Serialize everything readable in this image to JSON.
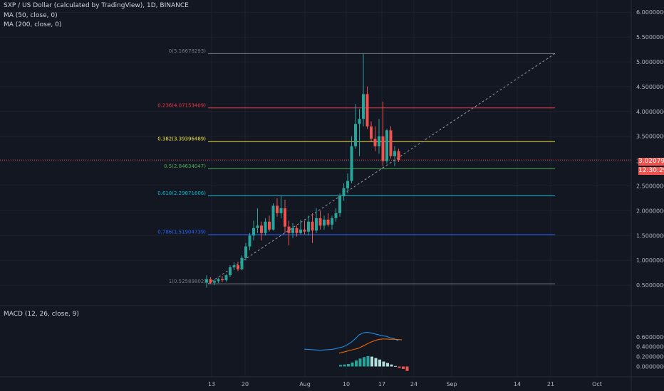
{
  "legend": {
    "title": "SXP / US Dollar (calculated by TradingView), 1D, BINANCE",
    "ma50": "MA (50, close, 0)",
    "ma200": "MA (200, close, 0)",
    "macd": "MACD (12, 26, close, 9)"
  },
  "price_label": {
    "current": "3.02079131",
    "countdown": "12:30:29",
    "color": "#ef5350"
  },
  "colors": {
    "background": "#131722",
    "up": "#26a69a",
    "down": "#ef5350",
    "macd_line": "#2196f3",
    "signal_line": "#ff6d00",
    "grid": "#1e222d"
  },
  "chart_data": [
    {
      "type": "candlestick",
      "title": "SXP / US Dollar (calculated by TradingView), 1D, BINANCE",
      "ylim": [
        0.0,
        6.3
      ],
      "y_ticks": [
        "0.50000000",
        "1.00000000",
        "1.50000000",
        "2.00000000",
        "2.50000000",
        "3.00000000",
        "3.50000000",
        "4.00000000",
        "4.50000000",
        "5.00000000",
        "5.50000000",
        "6.00000000"
      ],
      "x_ticks": [
        "13",
        "20",
        "Aug",
        "10",
        "17",
        "24",
        "Sep",
        "14",
        "21",
        "Oct"
      ],
      "current_price": 3.02079131,
      "fib_levels": [
        {
          "label": "0(5.16678293)",
          "value": 5.16678293,
          "color": "#787b86"
        },
        {
          "label": "0.236(4.07153409)",
          "value": 4.07153409,
          "color": "#f23645"
        },
        {
          "label": "0.382(3.39396489)",
          "value": 3.39396489,
          "color": "#f5e642"
        },
        {
          "label": "0.5(2.84634047)",
          "value": 2.84634047,
          "color": "#4caf50"
        },
        {
          "label": "0.618(2.29871606)",
          "value": 2.29871606,
          "color": "#00bcd4"
        },
        {
          "label": "0.786(1.51904739)",
          "value": 1.51904739,
          "color": "#2962ff"
        },
        {
          "label": "1(0.52589802)",
          "value": 0.52589802,
          "color": "#787b86"
        }
      ],
      "candles": [
        {
          "o": 0.55,
          "h": 0.7,
          "l": 0.45,
          "c": 0.62
        },
        {
          "o": 0.62,
          "h": 0.66,
          "l": 0.52,
          "c": 0.55
        },
        {
          "o": 0.55,
          "h": 0.62,
          "l": 0.5,
          "c": 0.58
        },
        {
          "o": 0.58,
          "h": 0.65,
          "l": 0.54,
          "c": 0.62
        },
        {
          "o": 0.62,
          "h": 0.68,
          "l": 0.56,
          "c": 0.6
        },
        {
          "o": 0.6,
          "h": 0.72,
          "l": 0.57,
          "c": 0.7
        },
        {
          "o": 0.7,
          "h": 0.9,
          "l": 0.66,
          "c": 0.86
        },
        {
          "o": 0.86,
          "h": 0.96,
          "l": 0.8,
          "c": 0.9
        },
        {
          "o": 0.9,
          "h": 0.97,
          "l": 0.78,
          "c": 0.82
        },
        {
          "o": 0.82,
          "h": 1.1,
          "l": 0.8,
          "c": 1.05
        },
        {
          "o": 1.05,
          "h": 1.35,
          "l": 1.0,
          "c": 1.28
        },
        {
          "o": 1.28,
          "h": 1.55,
          "l": 1.2,
          "c": 1.5
        },
        {
          "o": 1.5,
          "h": 1.8,
          "l": 1.4,
          "c": 1.65
        },
        {
          "o": 1.65,
          "h": 2.05,
          "l": 1.55,
          "c": 1.7
        },
        {
          "o": 1.7,
          "h": 1.78,
          "l": 1.4,
          "c": 1.55
        },
        {
          "o": 1.55,
          "h": 1.85,
          "l": 1.5,
          "c": 1.78
        },
        {
          "o": 1.78,
          "h": 1.9,
          "l": 1.58,
          "c": 1.62
        },
        {
          "o": 1.62,
          "h": 2.15,
          "l": 1.6,
          "c": 2.1
        },
        {
          "o": 2.1,
          "h": 2.25,
          "l": 1.88,
          "c": 1.95
        },
        {
          "o": 1.95,
          "h": 2.3,
          "l": 1.85,
          "c": 2.05
        },
        {
          "o": 2.05,
          "h": 2.22,
          "l": 1.55,
          "c": 1.68
        },
        {
          "o": 1.68,
          "h": 1.8,
          "l": 1.3,
          "c": 1.55
        },
        {
          "o": 1.55,
          "h": 1.75,
          "l": 1.45,
          "c": 1.65
        },
        {
          "o": 1.65,
          "h": 1.7,
          "l": 1.48,
          "c": 1.55
        },
        {
          "o": 1.55,
          "h": 1.82,
          "l": 1.52,
          "c": 1.62
        },
        {
          "o": 1.62,
          "h": 1.8,
          "l": 1.52,
          "c": 1.58
        },
        {
          "o": 1.58,
          "h": 1.9,
          "l": 1.5,
          "c": 1.78
        },
        {
          "o": 1.78,
          "h": 1.95,
          "l": 1.35,
          "c": 1.6
        },
        {
          "o": 1.6,
          "h": 2.05,
          "l": 1.55,
          "c": 1.85
        },
        {
          "o": 1.85,
          "h": 2.0,
          "l": 1.62,
          "c": 1.7
        },
        {
          "o": 1.7,
          "h": 1.9,
          "l": 1.62,
          "c": 1.82
        },
        {
          "o": 1.82,
          "h": 1.95,
          "l": 1.68,
          "c": 1.72
        },
        {
          "o": 1.72,
          "h": 1.9,
          "l": 1.62,
          "c": 1.85
        },
        {
          "o": 1.85,
          "h": 2.05,
          "l": 1.78,
          "c": 1.95
        },
        {
          "o": 1.95,
          "h": 2.35,
          "l": 1.88,
          "c": 2.3
        },
        {
          "o": 2.3,
          "h": 2.55,
          "l": 2.2,
          "c": 2.45
        },
        {
          "o": 2.45,
          "h": 2.75,
          "l": 2.35,
          "c": 2.6
        },
        {
          "o": 2.6,
          "h": 3.5,
          "l": 2.55,
          "c": 3.3
        },
        {
          "o": 3.3,
          "h": 4.15,
          "l": 3.25,
          "c": 3.75
        },
        {
          "o": 3.75,
          "h": 4.05,
          "l": 3.1,
          "c": 3.85
        },
        {
          "o": 3.85,
          "h": 5.16,
          "l": 3.7,
          "c": 4.35
        },
        {
          "o": 4.35,
          "h": 4.5,
          "l": 3.65,
          "c": 3.7
        },
        {
          "o": 3.7,
          "h": 3.8,
          "l": 3.4,
          "c": 3.45
        },
        {
          "o": 3.45,
          "h": 3.7,
          "l": 3.2,
          "c": 3.3
        },
        {
          "o": 3.3,
          "h": 3.85,
          "l": 3.15,
          "c": 3.5
        },
        {
          "o": 3.5,
          "h": 4.2,
          "l": 2.9,
          "c": 3.0
        },
        {
          "o": 3.0,
          "h": 3.65,
          "l": 2.95,
          "c": 3.62
        },
        {
          "o": 3.62,
          "h": 3.7,
          "l": 3.05,
          "c": 3.1
        },
        {
          "o": 3.1,
          "h": 3.3,
          "l": 2.9,
          "c": 3.2
        },
        {
          "o": 3.2,
          "h": 3.25,
          "l": 2.98,
          "c": 3.02
        }
      ]
    },
    {
      "type": "macd",
      "title": "MACD (12, 26, close, 9)",
      "ylim": [
        -0.1,
        0.75
      ],
      "y_ticks": [
        "0.00000000",
        "0.20000000",
        "0.40000000",
        "0.60000000"
      ],
      "macd": [
        0.35,
        0.345,
        0.34,
        0.335,
        0.33,
        0.335,
        0.34,
        0.345,
        0.36,
        0.38,
        0.4,
        0.44,
        0.49,
        0.56,
        0.64,
        0.68,
        0.69,
        0.68,
        0.66,
        0.64,
        0.62,
        0.61,
        0.58,
        0.56,
        0.52
      ],
      "signal": [
        0.27,
        0.29,
        0.31,
        0.33,
        0.35,
        0.37,
        0.41,
        0.45,
        0.49,
        0.52,
        0.545,
        0.555,
        0.555,
        0.55,
        0.55,
        0.545,
        0.54
      ],
      "histogram": [
        0.03,
        0.04,
        0.05,
        0.08,
        0.12,
        0.16,
        0.19,
        0.21,
        0.2,
        0.17,
        0.14,
        0.1,
        0.07,
        0.04,
        0.01,
        -0.03,
        -0.05,
        -0.09
      ]
    }
  ]
}
